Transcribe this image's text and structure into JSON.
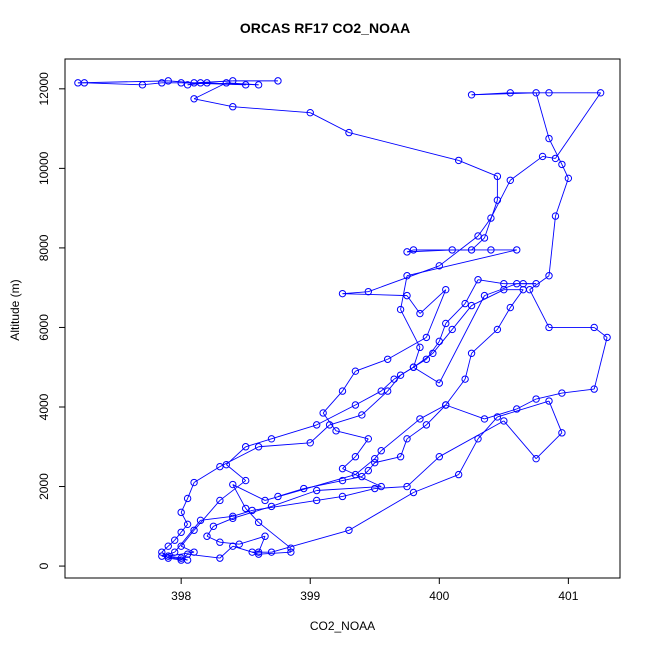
{
  "chart_data": {
    "type": "line",
    "title": "ORCAS RF17 CO2_NOAA",
    "xlabel": "CO2_NOAA",
    "ylabel": "Altitude (m)",
    "xlim": [
      397.1,
      401.4
    ],
    "ylim": [
      -300,
      12750
    ],
    "x_ticks": [
      398,
      399,
      400,
      401
    ],
    "y_ticks": [
      0,
      2000,
      4000,
      6000,
      8000,
      10000,
      12000
    ],
    "grid": false,
    "legend": "none",
    "marker": "open-circle",
    "series": [
      {
        "color": "#0000ff",
        "points": [
          [
            398.75,
            12200
          ],
          [
            398.4,
            12200
          ],
          [
            398.1,
            12150
          ],
          [
            397.9,
            12200
          ],
          [
            397.2,
            12150
          ],
          [
            397.25,
            12150
          ],
          [
            397.7,
            12100
          ],
          [
            397.85,
            12150
          ],
          [
            398.0,
            12150
          ],
          [
            398.5,
            12100
          ],
          [
            398.2,
            12150
          ],
          [
            398.05,
            12100
          ],
          [
            398.15,
            12150
          ],
          [
            398.6,
            12100
          ],
          [
            398.35,
            12150
          ],
          [
            398.1,
            11750
          ],
          [
            398.4,
            11550
          ],
          [
            399.0,
            11400
          ],
          [
            399.3,
            10900
          ],
          [
            400.15,
            10200
          ],
          [
            400.45,
            9800
          ],
          [
            400.45,
            9200
          ],
          [
            400.35,
            8250
          ],
          [
            400.25,
            7950
          ],
          [
            399.8,
            7950
          ],
          [
            399.75,
            7900
          ],
          [
            400.1,
            7950
          ],
          [
            400.4,
            7950
          ],
          [
            400.6,
            7950
          ],
          [
            399.75,
            7300
          ],
          [
            399.7,
            6450
          ],
          [
            399.85,
            5500
          ],
          [
            399.8,
            5000
          ],
          [
            400.0,
            4600
          ],
          [
            400.35,
            6800
          ],
          [
            400.6,
            7100
          ],
          [
            400.75,
            7100
          ],
          [
            400.65,
            7100
          ],
          [
            400.5,
            7100
          ],
          [
            400.3,
            7200
          ],
          [
            400.2,
            6600
          ],
          [
            400.05,
            6100
          ],
          [
            400.0,
            5650
          ],
          [
            399.9,
            5200
          ],
          [
            399.7,
            4800
          ],
          [
            399.6,
            4400
          ],
          [
            399.4,
            3800
          ],
          [
            399.15,
            3550
          ],
          [
            399.0,
            3100
          ],
          [
            398.6,
            3000
          ],
          [
            398.3,
            2500
          ],
          [
            398.1,
            2100
          ],
          [
            398.05,
            1700
          ],
          [
            398.0,
            1350
          ],
          [
            398.05,
            1050
          ],
          [
            398.0,
            850
          ],
          [
            397.95,
            650
          ],
          [
            397.9,
            500
          ],
          [
            397.85,
            350
          ],
          [
            397.9,
            200
          ],
          [
            398.0,
            150
          ],
          [
            398.05,
            300
          ],
          [
            398.3,
            200
          ],
          [
            398.4,
            500
          ],
          [
            398.6,
            300
          ],
          [
            398.85,
            350
          ],
          [
            398.85,
            450
          ],
          [
            398.6,
            1100
          ],
          [
            398.5,
            1450
          ],
          [
            398.4,
            2050
          ],
          [
            398.65,
            1650
          ],
          [
            399.35,
            2300
          ],
          [
            399.5,
            2700
          ],
          [
            399.55,
            2900
          ],
          [
            399.85,
            3700
          ],
          [
            400.05,
            4050
          ],
          [
            400.35,
            3700
          ],
          [
            400.6,
            3950
          ],
          [
            400.75,
            4200
          ],
          [
            400.95,
            4350
          ],
          [
            401.2,
            4450
          ],
          [
            401.3,
            5750
          ],
          [
            401.2,
            6000
          ],
          [
            400.85,
            6000
          ],
          [
            400.7,
            6950
          ],
          [
            400.85,
            7300
          ],
          [
            400.9,
            8800
          ],
          [
            401.0,
            9750
          ],
          [
            400.95,
            10100
          ],
          [
            400.85,
            10750
          ],
          [
            400.75,
            11900
          ],
          [
            400.25,
            11850
          ],
          [
            400.55,
            11900
          ],
          [
            400.85,
            11900
          ],
          [
            401.25,
            11900
          ],
          [
            400.9,
            10250
          ],
          [
            400.8,
            10300
          ],
          [
            400.55,
            9700
          ],
          [
            400.4,
            8750
          ],
          [
            400.3,
            8300
          ],
          [
            400.0,
            7550
          ],
          [
            399.45,
            6900
          ],
          [
            399.25,
            6850
          ],
          [
            399.75,
            6800
          ],
          [
            399.85,
            6350
          ],
          [
            400.05,
            6950
          ],
          [
            399.9,
            5750
          ],
          [
            399.6,
            5200
          ],
          [
            399.35,
            4900
          ],
          [
            399.25,
            4400
          ],
          [
            399.1,
            3850
          ],
          [
            399.2,
            3400
          ],
          [
            399.45,
            3200
          ],
          [
            399.35,
            2750
          ],
          [
            399.25,
            2450
          ],
          [
            399.55,
            2000
          ],
          [
            399.05,
            1900
          ],
          [
            398.7,
            1500
          ],
          [
            398.4,
            1200
          ],
          [
            398.25,
            1000
          ],
          [
            398.2,
            750
          ],
          [
            398.3,
            600
          ],
          [
            398.45,
            550
          ],
          [
            398.65,
            750
          ],
          [
            398.6,
            350
          ],
          [
            398.55,
            350
          ],
          [
            398.7,
            350
          ],
          [
            399.3,
            900
          ],
          [
            399.8,
            1850
          ],
          [
            400.15,
            2300
          ],
          [
            400.3,
            3200
          ],
          [
            400.45,
            3750
          ],
          [
            400.85,
            4150
          ],
          [
            400.95,
            3350
          ],
          [
            400.75,
            2700
          ],
          [
            400.5,
            3650
          ],
          [
            400.0,
            2750
          ],
          [
            399.75,
            2000
          ],
          [
            399.5,
            1950
          ],
          [
            399.25,
            1750
          ],
          [
            399.05,
            1650
          ],
          [
            398.55,
            1400
          ],
          [
            398.4,
            1250
          ],
          [
            398.15,
            1150
          ],
          [
            397.95,
            350
          ],
          [
            397.85,
            250
          ],
          [
            398.05,
            150
          ],
          [
            398.0,
            200
          ],
          [
            397.9,
            250
          ],
          [
            398.1,
            350
          ],
          [
            398.0,
            500
          ],
          [
            398.1,
            900
          ],
          [
            398.3,
            1650
          ],
          [
            398.5,
            2150
          ],
          [
            398.35,
            2550
          ],
          [
            398.5,
            3000
          ],
          [
            398.7,
            3200
          ],
          [
            399.05,
            3550
          ],
          [
            399.35,
            4050
          ],
          [
            399.55,
            4400
          ],
          [
            399.65,
            4700
          ],
          [
            399.8,
            5000
          ],
          [
            399.95,
            5350
          ],
          [
            400.1,
            5950
          ],
          [
            400.25,
            6550
          ],
          [
            400.5,
            6950
          ],
          [
            400.65,
            6950
          ],
          [
            400.55,
            6500
          ],
          [
            400.45,
            5950
          ],
          [
            400.25,
            5350
          ],
          [
            400.2,
            4700
          ],
          [
            400.05,
            4050
          ],
          [
            399.9,
            3550
          ],
          [
            399.75,
            3200
          ],
          [
            399.7,
            2750
          ],
          [
            399.5,
            2600
          ],
          [
            399.45,
            2400
          ],
          [
            399.4,
            2250
          ],
          [
            399.25,
            2150
          ],
          [
            398.95,
            1950
          ],
          [
            398.75,
            1750
          ]
        ]
      }
    ]
  }
}
